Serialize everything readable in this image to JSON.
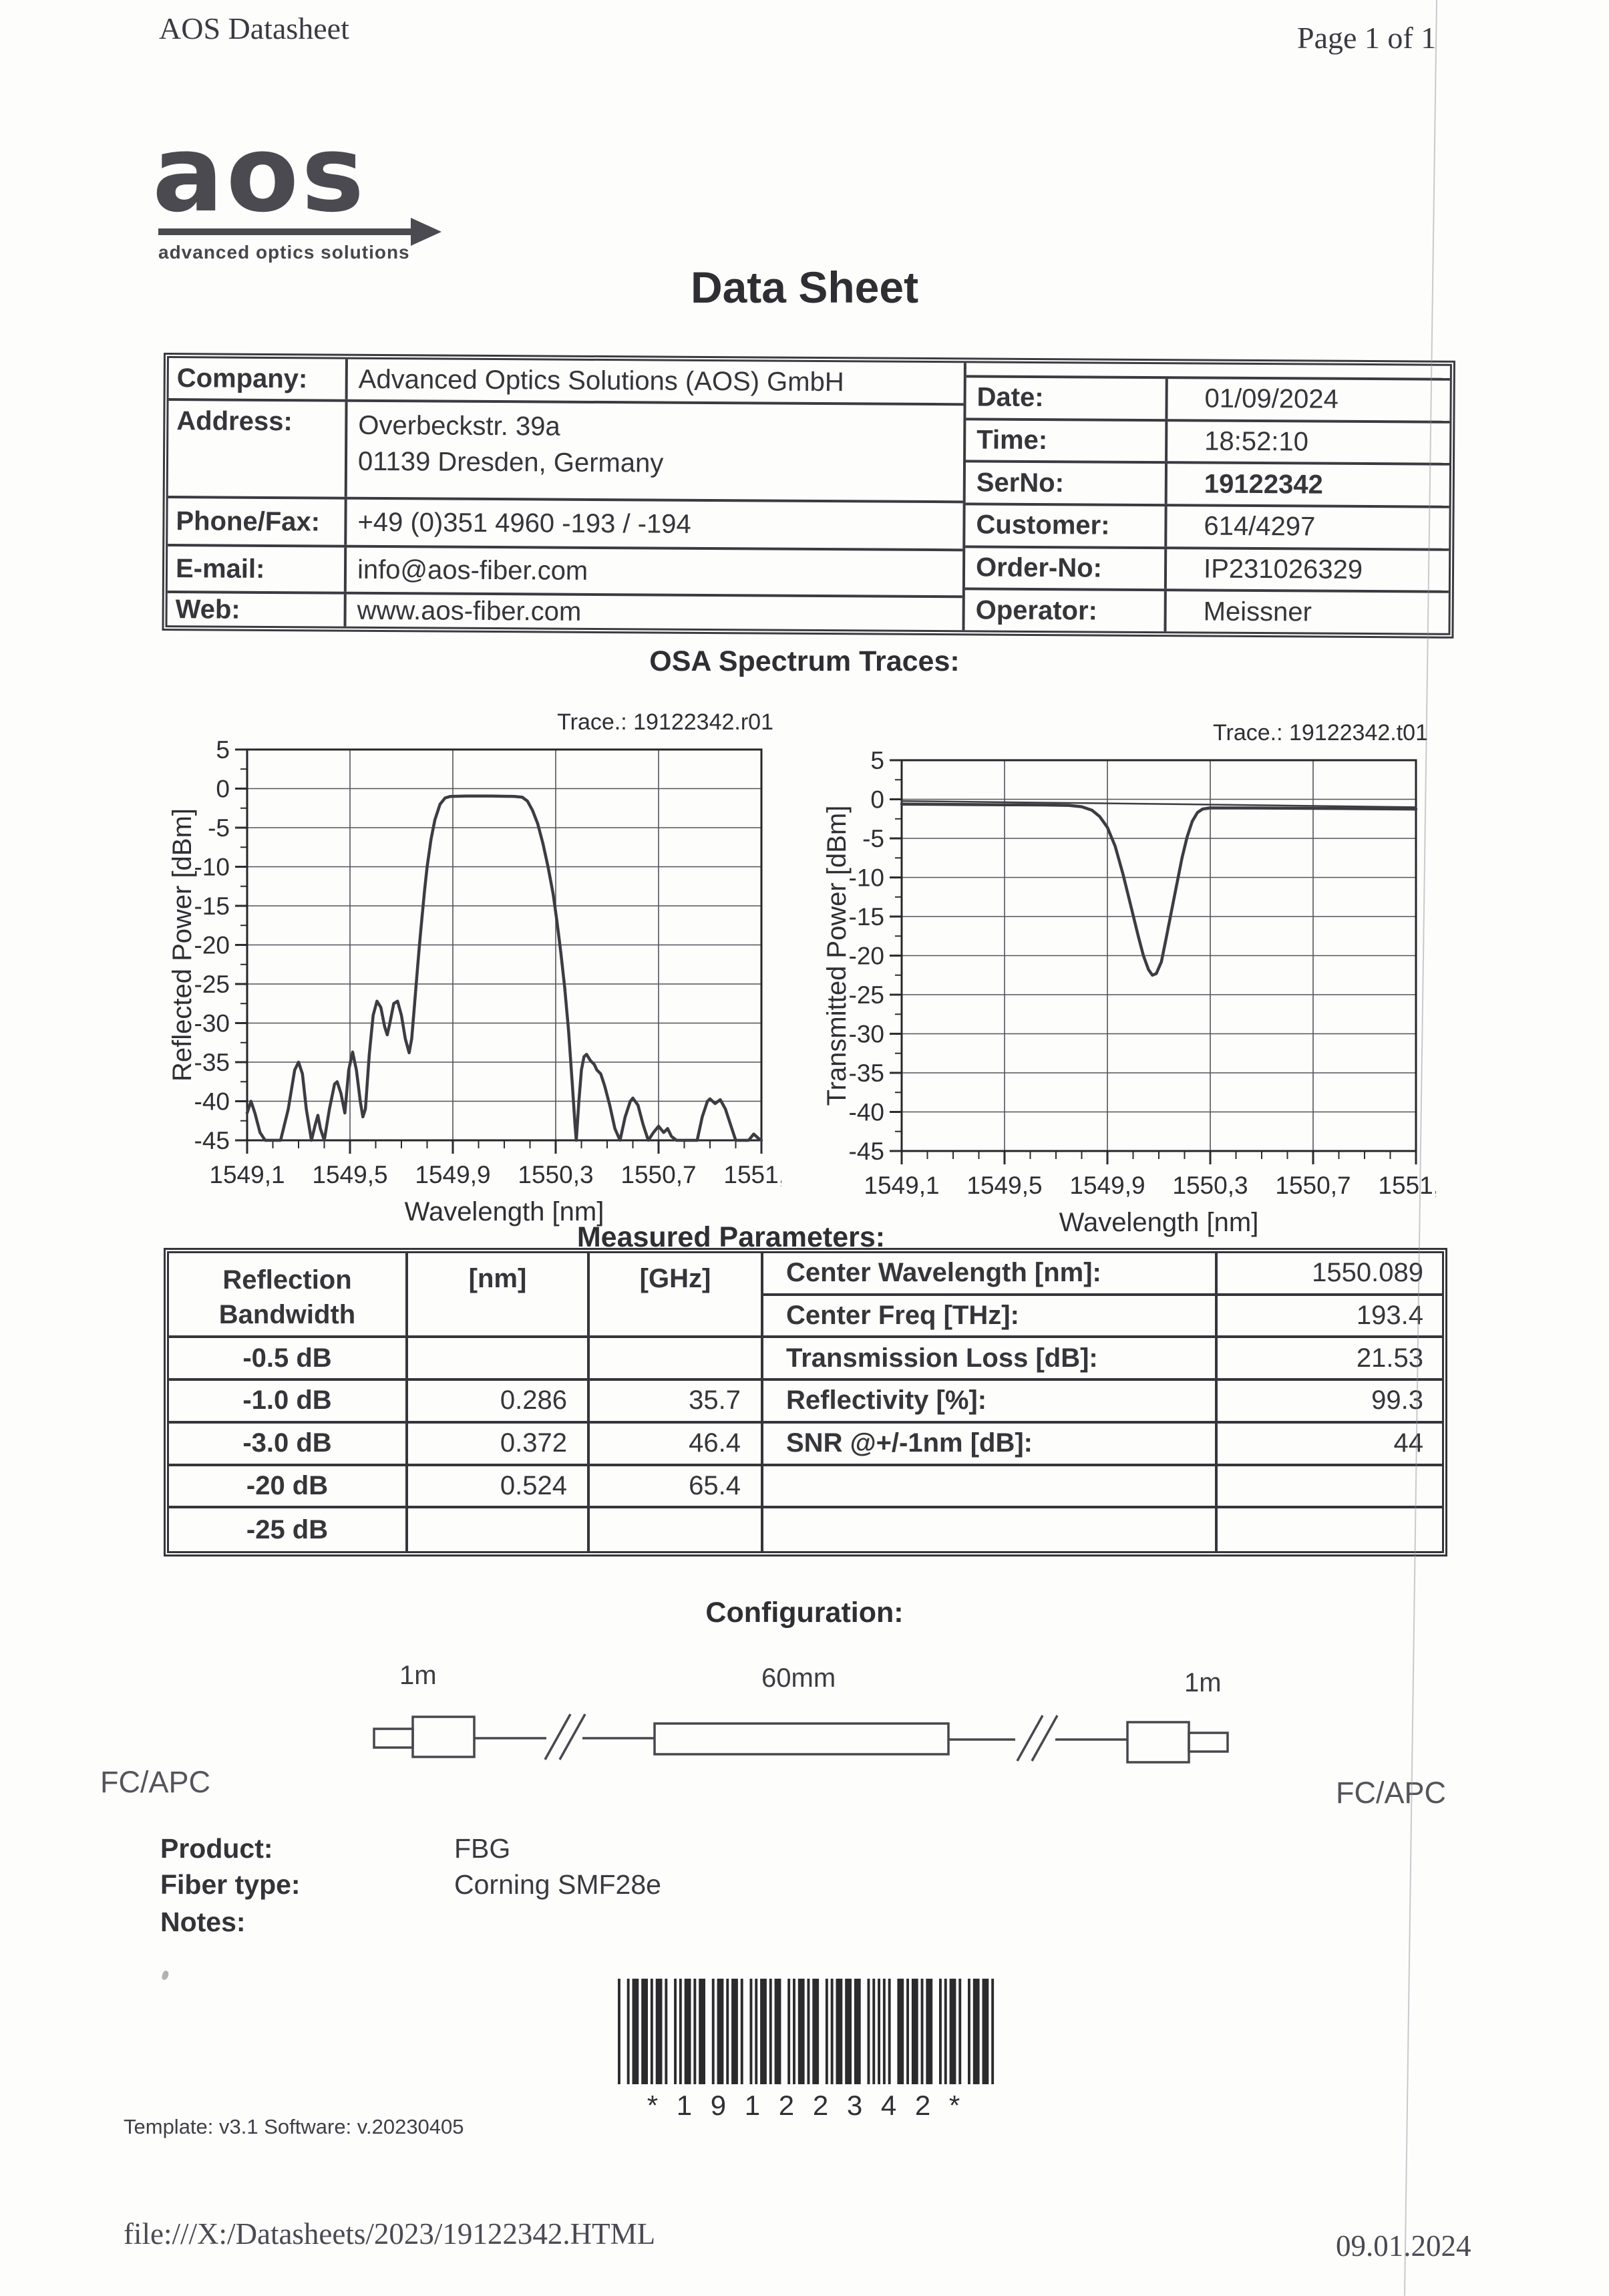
{
  "header": {
    "left": "AOS Datasheet",
    "right": "Page 1 of 1"
  },
  "logo": {
    "word": "aos",
    "tagline": "advanced optics solutions"
  },
  "title": "Data Sheet",
  "info": {
    "left": [
      {
        "label": "Company:",
        "value": "Advanced Optics Solutions (AOS) GmbH"
      },
      {
        "label": "Address:",
        "line1": "Overbeckstr. 39a",
        "line2": "01139 Dresden, Germany"
      },
      {
        "label": "Phone/Fax:",
        "value": "+49 (0)351 4960 -193 / -194"
      },
      {
        "label": "E-mail:",
        "value": "info@aos-fiber.com"
      },
      {
        "label": "Web:",
        "value": "www.aos-fiber.com"
      }
    ],
    "right": [
      {
        "label": "Date:",
        "value": "01/09/2024"
      },
      {
        "label": "Time:",
        "value": "18:52:10"
      },
      {
        "label": "SerNo:",
        "value": "19122342"
      },
      {
        "label": "Customer:",
        "value": "614/4297"
      },
      {
        "label": "Order-No:",
        "value": "IP231026329"
      },
      {
        "label": "Operator:",
        "value": "Meissner"
      }
    ]
  },
  "sections": {
    "traces": "OSA Spectrum Traces:",
    "params": "Measured Parameters:",
    "config": "Configuration:"
  },
  "chart_data": [
    {
      "type": "line",
      "title": "Trace.: 19122342.r01",
      "xlabel": "Wavelength [nm]",
      "ylabel": "Reflected Power [dBm]",
      "xlim": [
        1549.1,
        1551.1
      ],
      "ylim": [
        -45,
        5
      ],
      "grid": true,
      "legend": "none",
      "xticks": [
        1549.1,
        1549.5,
        1549.9,
        1550.3,
        1550.7,
        1551.1
      ],
      "xtick_labels": [
        "1549,1",
        "1549,5",
        "1549,9",
        "1550,3",
        "1550,7",
        "1551,1"
      ],
      "yticks": [
        5,
        0,
        -5,
        -10,
        -15,
        -20,
        -25,
        -30,
        -35,
        -40,
        -45
      ],
      "ytick_labels": [
        "5",
        "0",
        "-5",
        "-10",
        "-15",
        "-20",
        "-25",
        "-30",
        "-35",
        "-40",
        "-45"
      ],
      "series": [
        {
          "name": "reflected-power",
          "width": 4.5,
          "points": [
            [
              1549.1,
              -41.5
            ],
            [
              1549.115,
              -40
            ],
            [
              1549.13,
              -41.5
            ],
            [
              1549.15,
              -44
            ],
            [
              1549.17,
              -45
            ],
            [
              1549.23,
              -45
            ],
            [
              1549.26,
              -41
            ],
            [
              1549.285,
              -36
            ],
            [
              1549.3,
              -35
            ],
            [
              1549.315,
              -36.5
            ],
            [
              1549.33,
              -41
            ],
            [
              1549.35,
              -45
            ],
            [
              1549.365,
              -43
            ],
            [
              1549.375,
              -41.8
            ],
            [
              1549.385,
              -43.5
            ],
            [
              1549.4,
              -45
            ],
            [
              1549.42,
              -41
            ],
            [
              1549.44,
              -37.8
            ],
            [
              1549.45,
              -37.5
            ],
            [
              1549.465,
              -39
            ],
            [
              1549.48,
              -41.5
            ],
            [
              1549.495,
              -36
            ],
            [
              1549.51,
              -33.7
            ],
            [
              1549.525,
              -36
            ],
            [
              1549.54,
              -40
            ],
            [
              1549.55,
              -42
            ],
            [
              1549.56,
              -41
            ],
            [
              1549.575,
              -34
            ],
            [
              1549.59,
              -29
            ],
            [
              1549.605,
              -27.2
            ],
            [
              1549.62,
              -28
            ],
            [
              1549.635,
              -30.5
            ],
            [
              1549.645,
              -31.5
            ],
            [
              1549.655,
              -30
            ],
            [
              1549.67,
              -27.5
            ],
            [
              1549.685,
              -27.2
            ],
            [
              1549.7,
              -29
            ],
            [
              1549.715,
              -32
            ],
            [
              1549.73,
              -33.8
            ],
            [
              1549.74,
              -32
            ],
            [
              1549.75,
              -28
            ],
            [
              1549.76,
              -24
            ],
            [
              1549.77,
              -20
            ],
            [
              1549.78,
              -16.5
            ],
            [
              1549.79,
              -13
            ],
            [
              1549.8,
              -10
            ],
            [
              1549.815,
              -6.5
            ],
            [
              1549.83,
              -4
            ],
            [
              1549.85,
              -2
            ],
            [
              1549.87,
              -1.2
            ],
            [
              1549.89,
              -1.0
            ],
            [
              1549.95,
              -0.95
            ],
            [
              1550.05,
              -0.95
            ],
            [
              1550.14,
              -1.0
            ],
            [
              1550.17,
              -1.1
            ],
            [
              1550.19,
              -1.6
            ],
            [
              1550.21,
              -2.8
            ],
            [
              1550.23,
              -4.5
            ],
            [
              1550.25,
              -7
            ],
            [
              1550.27,
              -10
            ],
            [
              1550.29,
              -13.5
            ],
            [
              1550.305,
              -17
            ],
            [
              1550.32,
              -21
            ],
            [
              1550.335,
              -25.5
            ],
            [
              1550.35,
              -31
            ],
            [
              1550.365,
              -38
            ],
            [
              1550.375,
              -43
            ],
            [
              1550.38,
              -45
            ],
            [
              1550.39,
              -40
            ],
            [
              1550.4,
              -36
            ],
            [
              1550.41,
              -34.3
            ],
            [
              1550.42,
              -34
            ],
            [
              1550.435,
              -34.8
            ],
            [
              1550.45,
              -35.3
            ],
            [
              1550.46,
              -36
            ],
            [
              1550.475,
              -36.5
            ],
            [
              1550.49,
              -38
            ],
            [
              1550.51,
              -40.5
            ],
            [
              1550.53,
              -43.5
            ],
            [
              1550.55,
              -45
            ],
            [
              1550.57,
              -42
            ],
            [
              1550.59,
              -40
            ],
            [
              1550.6,
              -39.6
            ],
            [
              1550.62,
              -40.5
            ],
            [
              1550.64,
              -43
            ],
            [
              1550.66,
              -45
            ],
            [
              1550.68,
              -44
            ],
            [
              1550.7,
              -43.2
            ],
            [
              1550.72,
              -44
            ],
            [
              1550.735,
              -43.5
            ],
            [
              1550.75,
              -44.5
            ],
            [
              1550.77,
              -45
            ],
            [
              1550.85,
              -45
            ],
            [
              1550.87,
              -42
            ],
            [
              1550.89,
              -40
            ],
            [
              1550.9,
              -39.7
            ],
            [
              1550.92,
              -40.3
            ],
            [
              1550.94,
              -39.8
            ],
            [
              1550.96,
              -41
            ],
            [
              1550.98,
              -43
            ],
            [
              1551.0,
              -45
            ],
            [
              1551.05,
              -45
            ],
            [
              1551.07,
              -44.2
            ],
            [
              1551.09,
              -44.8
            ],
            [
              1551.1,
              -45
            ]
          ]
        }
      ]
    },
    {
      "type": "line",
      "title": "Trace.: 19122342.t01",
      "xlabel": "Wavelength [nm]",
      "ylabel": "Transmitted Power [dBm]",
      "xlim": [
        1549.1,
        1551.1
      ],
      "ylim": [
        -45,
        5
      ],
      "grid": true,
      "legend": "none",
      "xticks": [
        1549.1,
        1549.5,
        1549.9,
        1550.3,
        1550.7,
        1551.1
      ],
      "xtick_labels": [
        "1549,1",
        "1549,5",
        "1549,9",
        "1550,3",
        "1550,7",
        "1551,1"
      ],
      "yticks": [
        5,
        0,
        -5,
        -10,
        -15,
        -20,
        -25,
        -30,
        -35,
        -40,
        -45
      ],
      "ytick_labels": [
        "5",
        "0",
        "-5",
        "-10",
        "-15",
        "-20",
        "-25",
        "-30",
        "-35",
        "-40",
        "-45"
      ],
      "series": [
        {
          "name": "reference",
          "width": 2.5,
          "points": [
            [
              1549.1,
              -0.22
            ],
            [
              1550.1,
              -0.6
            ],
            [
              1551.1,
              -1.02
            ]
          ]
        },
        {
          "name": "transmitted-power",
          "width": 4.5,
          "points": [
            [
              1549.1,
              -0.62
            ],
            [
              1549.3,
              -0.66
            ],
            [
              1549.5,
              -0.7
            ],
            [
              1549.65,
              -0.73
            ],
            [
              1549.75,
              -0.78
            ],
            [
              1549.8,
              -0.95
            ],
            [
              1549.84,
              -1.4
            ],
            [
              1549.87,
              -2.2
            ],
            [
              1549.9,
              -3.6
            ],
            [
              1549.93,
              -6
            ],
            [
              1549.96,
              -9.5
            ],
            [
              1549.99,
              -13.5
            ],
            [
              1550.02,
              -17.5
            ],
            [
              1550.04,
              -20
            ],
            [
              1550.06,
              -21.8
            ],
            [
              1550.075,
              -22.5
            ],
            [
              1550.09,
              -22.3
            ],
            [
              1550.11,
              -20.8
            ],
            [
              1550.13,
              -17.5
            ],
            [
              1550.16,
              -12.5
            ],
            [
              1550.19,
              -7.5
            ],
            [
              1550.21,
              -4.8
            ],
            [
              1550.23,
              -2.8
            ],
            [
              1550.25,
              -1.7
            ],
            [
              1550.27,
              -1.25
            ],
            [
              1550.3,
              -1.1
            ],
            [
              1550.5,
              -1.12
            ],
            [
              1550.8,
              -1.18
            ],
            [
              1551.1,
              -1.25
            ]
          ]
        }
      ]
    }
  ],
  "params": {
    "header": {
      "bw1": "Reflection",
      "bw2": "Bandwidth",
      "nm": "[nm]",
      "ghz": "[GHz]"
    },
    "rows": [
      {
        "bw": "-0.5 dB",
        "nm": "",
        "ghz": ""
      },
      {
        "bw": "-1.0 dB",
        "nm": "0.286",
        "ghz": "35.7"
      },
      {
        "bw": "-3.0 dB",
        "nm": "0.372",
        "ghz": "46.4"
      },
      {
        "bw": "-20 dB",
        "nm": "0.524",
        "ghz": "65.4"
      },
      {
        "bw": "-25 dB",
        "nm": "",
        "ghz": ""
      }
    ],
    "right": [
      {
        "label": "Center Wavelength [nm]:",
        "value": "1550.089"
      },
      {
        "label": "Center Freq [THz]:",
        "value": "193.4"
      },
      {
        "label": "Transmission Loss [dB]:",
        "value": "21.53"
      },
      {
        "label": "Reflectivity [%]:",
        "value": "99.3"
      },
      {
        "label": "SNR @+/-1nm [dB]:",
        "value": "44"
      },
      {
        "label": "",
        "value": ""
      },
      {
        "label": "",
        "value": ""
      }
    ]
  },
  "configuration": {
    "seg_left": "1m",
    "seg_mid": "60mm",
    "seg_right": "1m",
    "conn_left": "FC/APC",
    "conn_right": "FC/APC"
  },
  "product": {
    "label1": "Product:",
    "value1": "FBG",
    "label2": "Fiber type:",
    "value2": "Corning SMF28e",
    "label3": "Notes:",
    "value3": ""
  },
  "barcode": {
    "value": "19122342",
    "display": "* 1 9 1 2 2 3 4 2 *"
  },
  "template_line": "Template: v3.1 Software: v.20230405",
  "footer": {
    "path": "file:///X:/Datasheets/2023/19122342.HTML",
    "date": "09.01.2024"
  }
}
